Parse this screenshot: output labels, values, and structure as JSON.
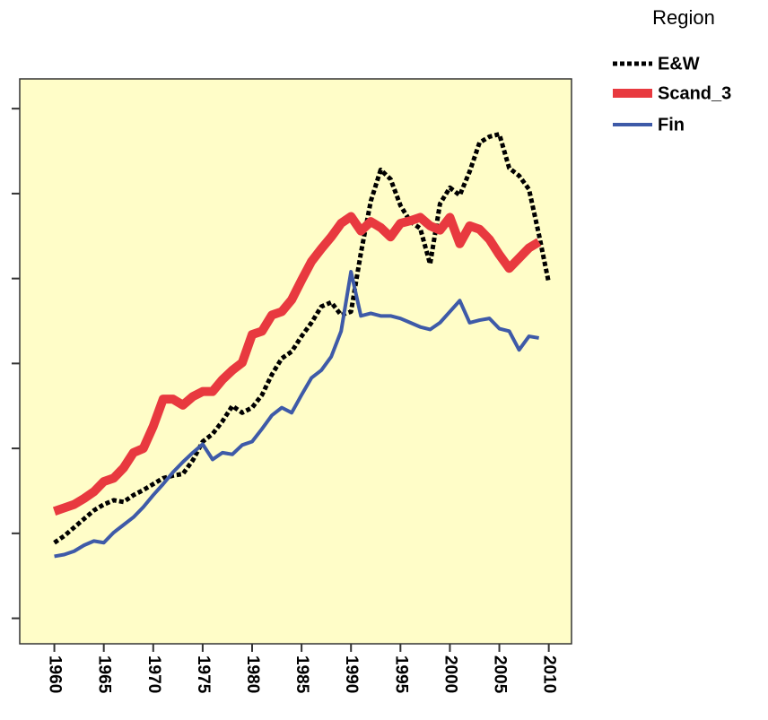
{
  "chart_data": {
    "type": "line",
    "legend_title": "Region",
    "x": [
      1960,
      1961,
      1962,
      1963,
      1964,
      1965,
      1966,
      1967,
      1968,
      1969,
      1970,
      1971,
      1972,
      1973,
      1974,
      1975,
      1976,
      1977,
      1978,
      1979,
      1980,
      1981,
      1982,
      1983,
      1984,
      1985,
      1986,
      1987,
      1988,
      1989,
      1990,
      1991,
      1992,
      1993,
      1994,
      1995,
      1996,
      1997,
      1998,
      1999,
      2000,
      2001,
      2002,
      2003,
      2004,
      2005,
      2006,
      2007,
      2008,
      2009,
      2010
    ],
    "series": [
      {
        "name": "E&W",
        "color": "#000000",
        "style": "dotted",
        "values": [
          1.89,
          1.97,
          2.07,
          2.17,
          2.27,
          2.34,
          2.39,
          2.37,
          2.45,
          2.51,
          2.58,
          2.65,
          2.68,
          2.7,
          2.86,
          3.08,
          3.17,
          3.32,
          3.5,
          3.42,
          3.48,
          3.63,
          3.87,
          4.06,
          4.14,
          4.32,
          4.48,
          4.67,
          4.72,
          4.57,
          4.61,
          5.3,
          5.91,
          6.28,
          6.17,
          5.86,
          5.67,
          5.59,
          5.17,
          5.88,
          6.07,
          5.98,
          6.26,
          6.6,
          6.67,
          6.7,
          6.3,
          6.21,
          6.05,
          5.52,
          4.95
        ]
      },
      {
        "name": "Scand_3",
        "color": "#e8393f",
        "style": "thick",
        "values": [
          2.26,
          2.3,
          2.34,
          2.41,
          2.49,
          2.61,
          2.65,
          2.77,
          2.95,
          3.0,
          3.26,
          3.58,
          3.58,
          3.51,
          3.61,
          3.67,
          3.67,
          3.81,
          3.92,
          4.01,
          4.34,
          4.38,
          4.57,
          4.61,
          4.75,
          4.98,
          5.2,
          5.35,
          5.49,
          5.65,
          5.73,
          5.56,
          5.67,
          5.6,
          5.49,
          5.65,
          5.68,
          5.72,
          5.62,
          5.57,
          5.72,
          5.41,
          5.62,
          5.58,
          5.46,
          5.28,
          5.12,
          5.24,
          5.36,
          5.43,
          null
        ]
      },
      {
        "name": "Fin",
        "color": "#3e5aa8",
        "style": "solid",
        "values": [
          1.73,
          1.75,
          1.79,
          1.86,
          1.91,
          1.89,
          2.01,
          2.1,
          2.19,
          2.31,
          2.45,
          2.58,
          2.72,
          2.84,
          2.95,
          3.05,
          2.87,
          2.95,
          2.93,
          3.04,
          3.08,
          3.23,
          3.39,
          3.48,
          3.42,
          3.63,
          3.83,
          3.92,
          4.08,
          4.38,
          5.08,
          4.56,
          4.59,
          4.56,
          4.56,
          4.53,
          4.48,
          4.43,
          4.4,
          4.48,
          4.61,
          4.74,
          4.48,
          4.51,
          4.53,
          4.41,
          4.38,
          4.16,
          4.32,
          4.3,
          null
        ]
      }
    ],
    "xlim": [
      1956.5,
      2012.3
    ],
    "xticks": [
      1960,
      1965,
      1970,
      1975,
      1980,
      1985,
      1990,
      1995,
      2000,
      2005,
      2010
    ],
    "ylim": [
      0.7,
      7.35
    ],
    "yticks": [
      1,
      2,
      3,
      4,
      5,
      6,
      7
    ],
    "background": "#fffdc8"
  }
}
